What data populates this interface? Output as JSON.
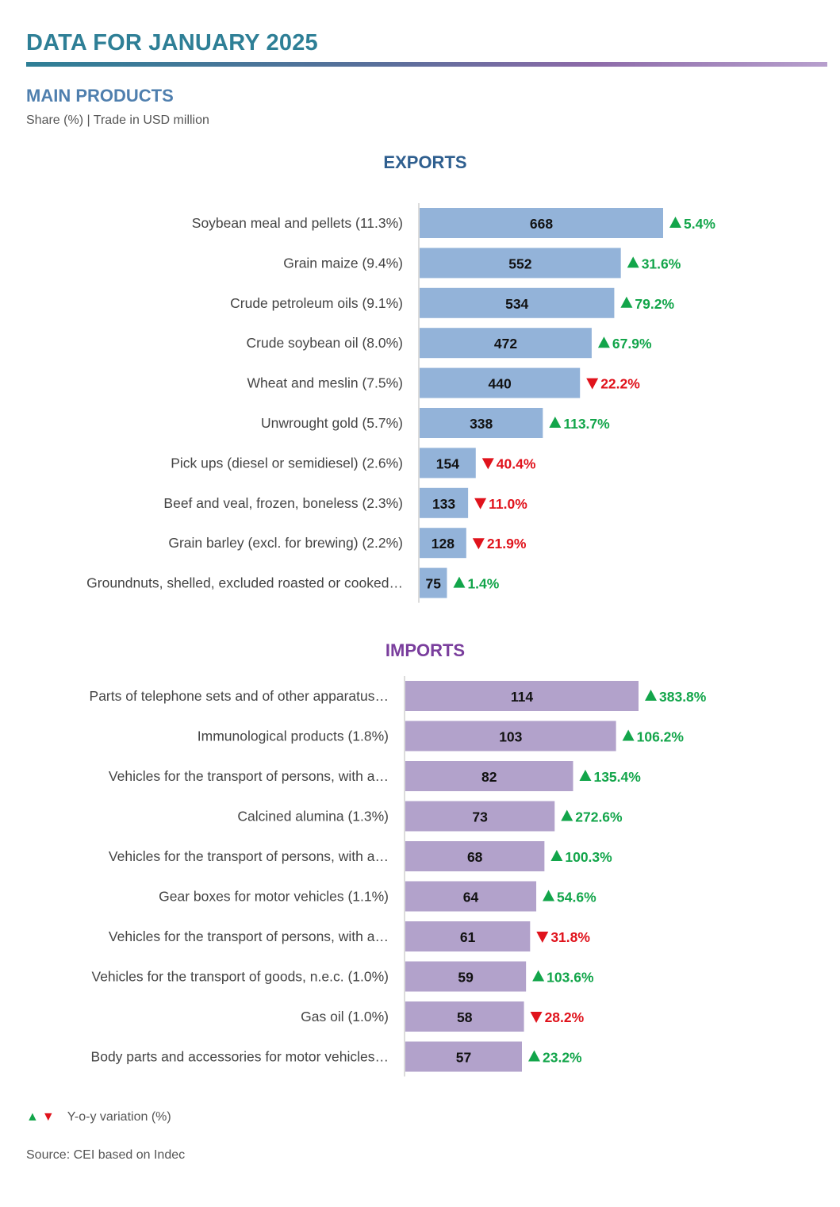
{
  "header": {
    "title": "DATA FOR JANUARY 2025",
    "section_title": "MAIN PRODUCTS",
    "subtitle": "Share (%) | Trade in USD million"
  },
  "colors": {
    "exports_bar": "#93b3d9",
    "imports_bar": "#b2a2cb",
    "exports_title": "#2f5f8f",
    "imports_title": "#7a3e9d",
    "up": "#12a54a",
    "down": "#e0131c"
  },
  "chart_data": [
    {
      "type": "bar",
      "orientation": "horizontal",
      "title": "EXPORTS",
      "categories": [
        "Soybean meal and pellets (11.3%)",
        "Grain maize (9.4%)",
        "Crude petroleum oils (9.1%)",
        "Crude soybean oil (8.0%)",
        "Wheat and meslin (7.5%)",
        "Unwrought gold (5.7%)",
        "Pick ups (diesel or semidiesel) (2.6%)",
        "Beef and veal, frozen, boneless (2.3%)",
        "Grain barley (excl. for brewing) (2.2%)",
        "Groundnuts, shelled, excluded roasted or cooked…"
      ],
      "values": [
        668,
        552,
        534,
        472,
        440,
        338,
        154,
        133,
        128,
        75
      ],
      "variation_labels": [
        "5.4%",
        "31.6%",
        "79.2%",
        "67.9%",
        "22.2%",
        "113.7%",
        "40.4%",
        "11.0%",
        "21.9%",
        "1.4%"
      ],
      "variation_direction": [
        "up",
        "up",
        "up",
        "up",
        "down",
        "up",
        "down",
        "down",
        "down",
        "up"
      ],
      "xlim": [
        0,
        668
      ]
    },
    {
      "type": "bar",
      "orientation": "horizontal",
      "title": "IMPORTS",
      "categories": [
        "Parts of telephone sets and of other apparatus…",
        "Immunological products (1.8%)",
        "Vehicles for the transport of persons, with a…",
        "Calcined alumina (1.3%)",
        "Vehicles for the transport of persons, with a…",
        "Gear boxes for motor vehicles (1.1%)",
        "Vehicles for the transport of persons, with a…",
        "Vehicles for the transport of goods, n.e.c. (1.0%)",
        "Gas oil (1.0%)",
        "Body parts and accessories for motor vehicles…"
      ],
      "values": [
        114,
        103,
        82,
        73,
        68,
        64,
        61,
        59,
        58,
        57
      ],
      "variation_labels": [
        "383.8%",
        "106.2%",
        "135.4%",
        "272.6%",
        "100.3%",
        "54.6%",
        "31.8%",
        "103.6%",
        "28.2%",
        "23.2%"
      ],
      "variation_direction": [
        "up",
        "up",
        "up",
        "up",
        "up",
        "up",
        "down",
        "up",
        "down",
        "up"
      ],
      "xlim": [
        0,
        114
      ]
    }
  ],
  "legend": {
    "up_symbol": "▲",
    "down_symbol": "▼",
    "label": "Y-o-y variation (%)"
  },
  "footer": {
    "source": "Source: CEI based on Indec"
  }
}
